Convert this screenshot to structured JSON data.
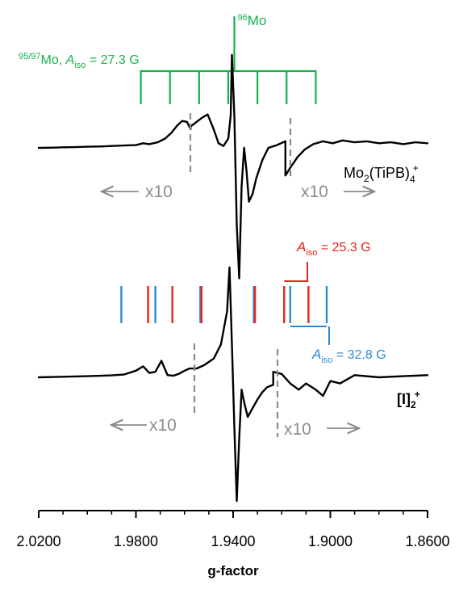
{
  "chart_data": {
    "type": "line",
    "xlabel": "g-factor",
    "x_reversed": true,
    "xlim": [
      2.02,
      1.86
    ],
    "x_ticks": [
      2.02,
      1.98,
      1.94,
      1.9,
      1.86
    ],
    "x_tick_labels": [
      "2.0200",
      "1.9800",
      "1.9400",
      "1.9000",
      "1.8600"
    ],
    "colors": {
      "green": "#13b24a",
      "red": "#e8241c",
      "blue": "#2e8bd1",
      "gray": "#8c8c8c",
      "trace": "#000000"
    },
    "series": [
      {
        "name": "Mo2(TiPB)4+",
        "label_text": "Mo",
        "label_sub1": "2",
        "label_mid": "(TiPB)",
        "label_sub2": "4",
        "label_sup": "+",
        "x": [
          2.02,
          2.015,
          2.01,
          2.005,
          2.0,
          1.995,
          1.99,
          1.985,
          1.98,
          1.977,
          1.9745,
          1.971,
          1.968,
          1.9655,
          1.963,
          1.961,
          1.959,
          1.9575,
          1.9575,
          1.9555,
          1.953,
          1.9505,
          1.948,
          1.946,
          1.944,
          1.942,
          1.941,
          1.9405,
          1.9395,
          1.9385,
          1.9375,
          1.9365,
          1.9355,
          1.9345,
          1.9335,
          1.932,
          1.9305,
          1.928,
          1.9255,
          1.922,
          1.9185,
          1.9185,
          1.9165,
          1.9135,
          1.9105,
          1.907,
          1.903,
          1.899,
          1.895,
          1.89,
          1.885,
          1.88,
          1.875,
          1.87,
          1.865,
          1.86
        ],
        "y": [
          0.0,
          0.002,
          0.006,
          0.008,
          0.012,
          0.015,
          0.02,
          0.025,
          0.03,
          0.05,
          0.04,
          0.06,
          0.1,
          0.16,
          0.24,
          0.29,
          0.28,
          0.2,
          0.23,
          0.27,
          0.32,
          0.36,
          0.2,
          0.05,
          0.02,
          0.1,
          0.35,
          1.0,
          0.35,
          -0.5,
          -0.85,
          -0.25,
          0.0,
          -0.15,
          -0.35,
          -0.3,
          -0.2,
          -0.08,
          0.0,
          0.03,
          0.07,
          -0.18,
          -0.13,
          -0.06,
          -0.01,
          0.04,
          0.07,
          0.05,
          0.08,
          0.06,
          0.07,
          0.05,
          0.06,
          0.04,
          0.06,
          0.05
        ]
      },
      {
        "name": "[I]2+",
        "label_text": "[I]",
        "label_sub": "2",
        "label_sup": "+",
        "x": [
          2.02,
          2.01,
          2.0,
          1.99,
          1.985,
          1.98,
          1.977,
          1.9745,
          1.972,
          1.9695,
          1.967,
          1.9645,
          1.962,
          1.96,
          1.958,
          1.958,
          1.955,
          1.952,
          1.948,
          1.945,
          1.9425,
          1.9415,
          1.9405,
          1.9395,
          1.9385,
          1.9375,
          1.9365,
          1.9355,
          1.934,
          1.932,
          1.93,
          1.928,
          1.926,
          1.9235,
          1.9235,
          1.92,
          1.9165,
          1.913,
          1.91,
          1.906,
          1.903,
          1.9,
          1.896,
          1.89,
          1.88,
          1.87,
          1.86
        ],
        "y": [
          0.0,
          0.005,
          0.01,
          0.018,
          0.025,
          0.06,
          0.1,
          0.04,
          0.05,
          0.15,
          0.02,
          0.015,
          0.035,
          0.06,
          0.08,
          0.08,
          0.08,
          0.11,
          0.17,
          0.3,
          0.6,
          1.0,
          0.3,
          -0.4,
          -1.0,
          -0.5,
          -0.1,
          -0.2,
          -0.32,
          -0.25,
          -0.18,
          -0.12,
          -0.08,
          -0.06,
          0.05,
          0.03,
          -0.05,
          -0.1,
          -0.05,
          -0.1,
          -0.15,
          -0.03,
          -0.05,
          0.02,
          0.0,
          0.01,
          0.02
        ]
      }
    ],
    "annotations": {
      "mo96_label": "Mo",
      "mo96_mass": "96",
      "green_mass": "95/97",
      "green_label": "Mo, ",
      "green_A": "A",
      "green_iso": "iso",
      "green_value": " = 27.3 G",
      "green_stick_lines": [
        1.978,
        1.966,
        1.954,
        1.942,
        1.93,
        1.918,
        1.906
      ],
      "green_center": 1.9395,
      "red_A": "A",
      "red_iso": "iso",
      "red_value": " = 25.3 G",
      "red_lines": [
        1.975,
        1.965,
        1.953,
        1.931,
        1.919,
        1.909
      ],
      "blue_A": "A",
      "blue_iso": "iso",
      "blue_value": " = 32.8 G",
      "blue_lines": [
        1.986,
        1.972,
        1.9535,
        1.9315,
        1.9165,
        1.9015
      ],
      "x10_left_top": "x10",
      "x10_right_top": "x10",
      "x10_left_bottom": "x10",
      "x10_right_bottom": "x10"
    }
  }
}
